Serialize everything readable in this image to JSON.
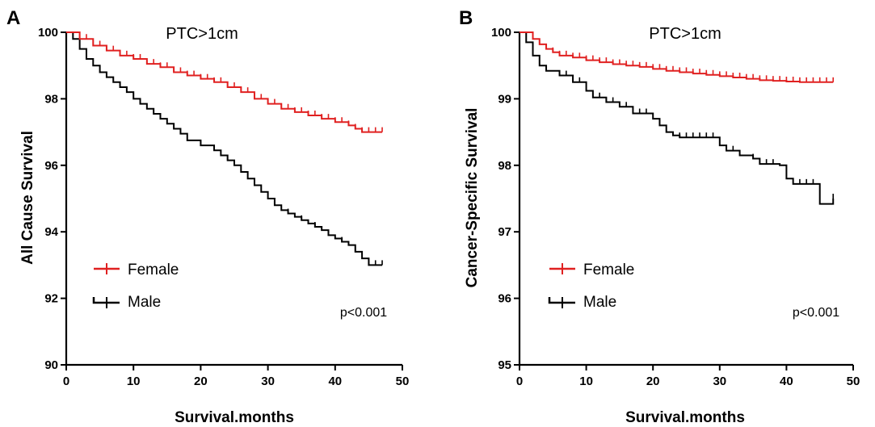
{
  "chart_data": [
    {
      "type": "line",
      "panel_label": "A",
      "title": "PTC>1cm",
      "xlabel": "Survival.months",
      "ylabel": "All Cause Survival",
      "xlim": [
        0,
        50
      ],
      "ylim": [
        90,
        100
      ],
      "xticks": [
        0,
        10,
        20,
        30,
        40,
        50
      ],
      "yticks": [
        90,
        92,
        94,
        96,
        98,
        100
      ],
      "annotation": "p<0.001",
      "legend_position": "bottom-left",
      "series": [
        {
          "name": "Female",
          "color": "#e02020",
          "x": [
            0,
            2,
            4,
            6,
            8,
            10,
            12,
            14,
            16,
            18,
            20,
            22,
            24,
            26,
            28,
            30,
            32,
            34,
            36,
            38,
            40,
            42,
            43,
            44,
            47
          ],
          "y": [
            100,
            99.8,
            99.6,
            99.45,
            99.3,
            99.2,
            99.05,
            98.95,
            98.8,
            98.7,
            98.6,
            98.5,
            98.35,
            98.2,
            98.0,
            97.85,
            97.7,
            97.6,
            97.5,
            97.4,
            97.3,
            97.2,
            97.1,
            97.0,
            97.0
          ],
          "censor_x": [
            2,
            3,
            4,
            5,
            6,
            7,
            8,
            9,
            10,
            11,
            12,
            13,
            14,
            15,
            16,
            17,
            18,
            19,
            20,
            21,
            22,
            23,
            24,
            25,
            26,
            27,
            28,
            29,
            30,
            31,
            32,
            33,
            34,
            35,
            36,
            37,
            38,
            39,
            40,
            41,
            42,
            43,
            44,
            45,
            46,
            47
          ]
        },
        {
          "name": "Male",
          "color": "#000000",
          "x": [
            0,
            1,
            2,
            3,
            4,
            5,
            6,
            7,
            8,
            9,
            10,
            11,
            12,
            13,
            14,
            15,
            16,
            17,
            18,
            20,
            22,
            23,
            24,
            25,
            26,
            27,
            28,
            29,
            30,
            31,
            32,
            33,
            34,
            35,
            36,
            37,
            38,
            39,
            40,
            41,
            42,
            43,
            44,
            45,
            47
          ],
          "y": [
            100,
            99.8,
            99.5,
            99.2,
            99.0,
            98.8,
            98.65,
            98.5,
            98.35,
            98.2,
            98.0,
            97.85,
            97.7,
            97.55,
            97.4,
            97.25,
            97.1,
            96.95,
            96.75,
            96.6,
            96.45,
            96.3,
            96.15,
            96.0,
            95.8,
            95.6,
            95.4,
            95.2,
            95.0,
            94.8,
            94.65,
            94.55,
            94.45,
            94.35,
            94.25,
            94.15,
            94.05,
            93.9,
            93.8,
            93.7,
            93.6,
            93.4,
            93.2,
            93.0,
            93.0
          ],
          "censor_x": [
            20,
            22,
            24,
            28,
            31,
            33,
            35,
            37,
            39,
            41,
            43,
            45,
            46,
            47
          ]
        }
      ]
    },
    {
      "type": "line",
      "panel_label": "B",
      "title": "PTC>1cm",
      "xlabel": "Survival.months",
      "ylabel": "Cancer-Specific Survival",
      "xlim": [
        0,
        50
      ],
      "ylim": [
        95,
        100
      ],
      "xticks": [
        0,
        10,
        20,
        30,
        40,
        50
      ],
      "yticks": [
        95,
        96,
        97,
        98,
        99,
        100
      ],
      "annotation": "p<0.001",
      "legend_position": "bottom-left",
      "series": [
        {
          "name": "Female",
          "color": "#e02020",
          "x": [
            0,
            2,
            3,
            4,
            5,
            6,
            8,
            10,
            12,
            14,
            16,
            18,
            20,
            22,
            24,
            26,
            28,
            30,
            32,
            34,
            36,
            38,
            40,
            42,
            47
          ],
          "y": [
            100,
            99.9,
            99.82,
            99.75,
            99.7,
            99.65,
            99.62,
            99.58,
            99.55,
            99.52,
            99.5,
            99.48,
            99.45,
            99.42,
            99.4,
            99.38,
            99.36,
            99.34,
            99.32,
            99.3,
            99.28,
            99.27,
            99.26,
            99.25,
            99.25
          ],
          "censor_x": [
            2,
            3,
            4,
            5,
            6,
            7,
            8,
            9,
            10,
            11,
            12,
            13,
            14,
            15,
            16,
            17,
            18,
            19,
            20,
            21,
            22,
            23,
            24,
            25,
            26,
            27,
            28,
            29,
            30,
            31,
            32,
            33,
            34,
            35,
            36,
            37,
            38,
            39,
            40,
            41,
            42,
            43,
            44,
            45,
            46,
            47
          ]
        },
        {
          "name": "Male",
          "color": "#000000",
          "x": [
            0,
            1,
            2,
            3,
            4,
            6,
            8,
            10,
            11,
            13,
            15,
            17,
            20,
            21,
            22,
            23,
            24,
            30,
            31,
            33,
            35,
            36,
            39,
            40,
            41,
            45,
            47
          ],
          "y": [
            100,
            99.85,
            99.65,
            99.5,
            99.42,
            99.35,
            99.25,
            99.12,
            99.02,
            98.95,
            98.88,
            98.78,
            98.7,
            98.6,
            98.5,
            98.45,
            98.42,
            98.3,
            98.22,
            98.15,
            98.1,
            98.02,
            98.0,
            97.8,
            97.72,
            97.42,
            97.5
          ],
          "censor_x": [
            6,
            7,
            8,
            9,
            11,
            12,
            13,
            14,
            16,
            18,
            19,
            24,
            25,
            26,
            27,
            28,
            29,
            31,
            32,
            35,
            37,
            38,
            42,
            43,
            44,
            47
          ]
        }
      ]
    }
  ]
}
